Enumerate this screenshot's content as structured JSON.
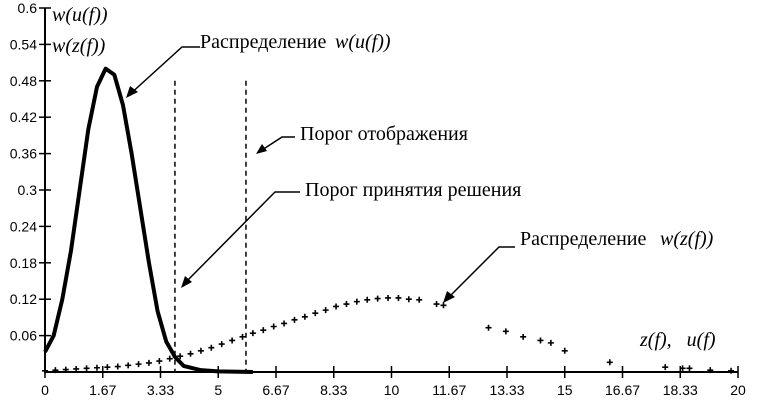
{
  "chart_data": {
    "type": "line",
    "xlim": [
      0,
      20
    ],
    "ylim": [
      0,
      0.6
    ],
    "x_ticks": [
      "0",
      "1.67",
      "3.33",
      "5",
      "6.67",
      "8.33",
      "10",
      "11.67",
      "13.33",
      "15",
      "16.67",
      "18.33",
      "20"
    ],
    "x_tick_values": [
      0,
      1.667,
      3.333,
      5,
      6.667,
      8.333,
      10,
      11.667,
      13.333,
      15,
      16.667,
      18.333,
      20
    ],
    "y_ticks": [
      "0.06",
      "0.12",
      "0.18",
      "0.24",
      "0.3",
      "0.36",
      "0.42",
      "0.48",
      "0.54",
      "0.6"
    ],
    "y_tick_values": [
      0.06,
      0.12,
      0.18,
      0.24,
      0.3,
      0.36,
      0.42,
      0.48,
      0.54,
      0.6
    ],
    "ylabel_top": "w(u(f))",
    "ylabel_bottom": "w(z(f))",
    "xlabel": "z(f),   u(f)",
    "grid": false,
    "series": [
      {
        "style": "solid-thick-line",
        "x": [
          0,
          0.25,
          0.5,
          0.75,
          1.0,
          1.25,
          1.5,
          1.75,
          2.0,
          2.25,
          2.5,
          2.75,
          3.0,
          3.25,
          3.5,
          3.75,
          4.0,
          4.5,
          5.0,
          6.0
        ],
        "y": [
          0.033,
          0.06,
          0.12,
          0.2,
          0.3,
          0.4,
          0.47,
          0.5,
          0.49,
          0.44,
          0.36,
          0.27,
          0.18,
          0.1,
          0.05,
          0.025,
          0.01,
          0.003,
          0.001,
          0
        ]
      },
      {
        "style": "plus-markers",
        "x": [
          0,
          0.3,
          0.6,
          0.9,
          1.2,
          1.5,
          1.8,
          2.1,
          2.4,
          2.7,
          3.0,
          3.3,
          3.6,
          3.9,
          4.2,
          4.5,
          4.8,
          5.1,
          5.4,
          5.7,
          6.0,
          6.3,
          6.6,
          6.9,
          7.2,
          7.5,
          7.8,
          8.1,
          8.4,
          8.7,
          9.0,
          9.3,
          9.6,
          9.9,
          10.2,
          10.5,
          10.8,
          11.3,
          11.5,
          12.8,
          13.3,
          13.8,
          14.3,
          14.6,
          15.0,
          16.3,
          17.9,
          18.4,
          18.6,
          19.2,
          19.8
        ],
        "y": [
          0.002,
          0.003,
          0.004,
          0.005,
          0.006,
          0.007,
          0.008,
          0.009,
          0.011,
          0.013,
          0.015,
          0.018,
          0.022,
          0.026,
          0.03,
          0.035,
          0.04,
          0.046,
          0.052,
          0.058,
          0.064,
          0.069,
          0.075,
          0.08,
          0.086,
          0.091,
          0.097,
          0.102,
          0.108,
          0.112,
          0.116,
          0.119,
          0.121,
          0.122,
          0.122,
          0.12,
          0.119,
          0.112,
          0.11,
          0.073,
          0.067,
          0.058,
          0.052,
          0.048,
          0.035,
          0.016,
          0.008,
          0.006,
          0.006,
          0.003,
          0.002
        ]
      }
    ],
    "thresholds": [
      {
        "x": 3.75,
        "y_top": 0.48,
        "style": "dashed"
      },
      {
        "x": 5.8,
        "y_top": 0.48,
        "style": "dashed"
      }
    ],
    "annotations": {
      "dist_u": {
        "text": "Распределение",
        "math": "w(u(f))"
      },
      "display_threshold": {
        "text": "Порог отображения"
      },
      "decision_threshold": {
        "text": "Порог принятия решения"
      },
      "dist_z": {
        "text": "Распределение",
        "math": "w(z(f))"
      }
    }
  }
}
